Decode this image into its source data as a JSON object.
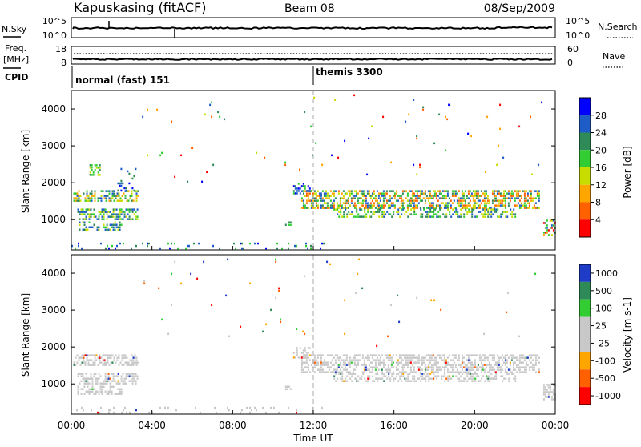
{
  "header": {
    "station": "Kapuskasing (fitACF)",
    "beam": "Beam 08",
    "date": "08/Sep/2009"
  },
  "noise_panel": {
    "left_label": "N.Sky",
    "left_ticks": [
      "10^5",
      "10^0"
    ],
    "right_label": "N.Search",
    "right_ticks": [
      "10^5",
      "10^0"
    ]
  },
  "freq_panel": {
    "left_label_line1": "Freq.",
    "left_label_line2": "[MHz]",
    "left_ticks": [
      "18",
      "8"
    ],
    "right_label": "Nave",
    "right_ticks": [
      "60",
      "0"
    ]
  },
  "cpid_panel": {
    "label": "CPID",
    "modes": [
      {
        "name": "normal (fast) 151",
        "start_hour": 0
      },
      {
        "name": "themis 3300",
        "start_hour": 12
      }
    ]
  },
  "colors": {
    "power_scale": [
      "#0000ff",
      "#1e5cc8",
      "#2e8b57",
      "#32cd32",
      "#c8dc00",
      "#ffa500",
      "#ff6000",
      "#ff0000"
    ],
    "velocity_scale": [
      "#1e3cc8",
      "#2e8b57",
      "#32cd32",
      "#c8c8c8",
      "#c8c8c8",
      "#ffa500",
      "#ff6000",
      "#ff0000"
    ]
  },
  "chart_data": [
    {
      "type": "heatmap",
      "title": "",
      "xlabel": "Time UT",
      "ylabel": "Slant Range [km]",
      "xlim": [
        0,
        24
      ],
      "ylim": [
        180,
        4500
      ],
      "xticks": [
        "00:00",
        "04:00",
        "08:00",
        "12:00",
        "16:00",
        "20:00",
        "00:00"
      ],
      "yticks": [
        1000,
        2000,
        3000,
        4000
      ],
      "colorbar": {
        "label": "Power [dB]",
        "ticks": [
          "28",
          "24",
          "20",
          "16",
          "12",
          "8",
          "4"
        ],
        "range": [
          0,
          30
        ]
      },
      "regions": [
        {
          "t": [
            0.0,
            3.4
          ],
          "r": [
            1500,
            1800
          ],
          "value": "power-high"
        },
        {
          "t": [
            0.0,
            3.4
          ],
          "r": [
            700,
            1350
          ],
          "value": "power-mid"
        },
        {
          "t": [
            11.0,
            24.0
          ],
          "r": [
            1100,
            1800
          ],
          "value": "power-high"
        },
        {
          "t": [
            0.0,
            12.0
          ],
          "r": [
            180,
            400
          ],
          "value": "power-low"
        }
      ]
    },
    {
      "type": "heatmap",
      "title": "",
      "xlabel": "Time UT",
      "ylabel": "Slant Range [km]",
      "xlim": [
        0,
        24
      ],
      "ylim": [
        180,
        4500
      ],
      "xticks": [
        "00:00",
        "04:00",
        "08:00",
        "12:00",
        "16:00",
        "20:00",
        "00:00"
      ],
      "yticks": [
        1000,
        2000,
        3000,
        4000
      ],
      "colorbar": {
        "label": "Velocity [m s-1]",
        "ticks": [
          "1000",
          "500",
          "100",
          "25",
          "-25",
          "-100",
          "-500",
          "-1000"
        ],
        "range": [
          -1200,
          1200
        ]
      },
      "regions": [
        {
          "t": [
            0.0,
            3.4
          ],
          "r": [
            700,
            1800
          ],
          "value": "velocity-ground-scatter"
        },
        {
          "t": [
            11.0,
            24.0
          ],
          "r": [
            1100,
            1800
          ],
          "value": "velocity-ground-scatter"
        }
      ]
    }
  ]
}
